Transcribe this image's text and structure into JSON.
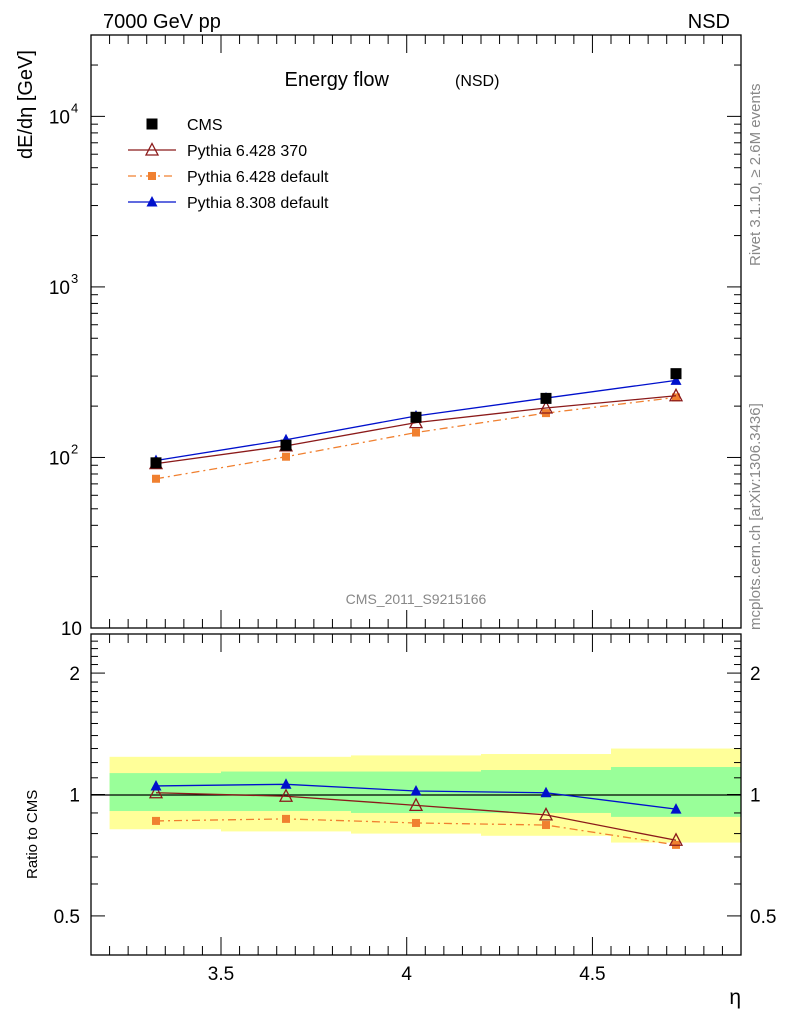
{
  "header": {
    "left": "7000 GeV pp",
    "right": "NSD"
  },
  "side_labels": {
    "rivet": "Rivet 3.1.10, ≥ 2.6M events",
    "mcplots": "mcplots.cern.ch [arXiv:1306.3436]"
  },
  "chart_data": [
    {
      "type": "line",
      "title": "Energy flow",
      "subtitle": "(NSD)",
      "ylabel": "dE/dη [GeV]",
      "yscale": "log",
      "ylim": [
        10,
        30000
      ],
      "xlim": [
        3.15,
        4.9
      ],
      "yticks": [
        {
          "value": 10,
          "label": "10"
        },
        {
          "value": 100,
          "label": "10",
          "exp": "2"
        },
        {
          "value": 1000,
          "label": "10",
          "exp": "3"
        },
        {
          "value": 10000,
          "label": "10",
          "exp": "4"
        }
      ],
      "watermark": "CMS_2011_S9215166",
      "legend_position": "top-left",
      "x": [
        3.325,
        3.675,
        4.025,
        4.375,
        4.725
      ],
      "series": [
        {
          "name": "CMS",
          "values": [
            93,
            118,
            172,
            222,
            310
          ],
          "color": "#000000",
          "marker": "square",
          "line": false
        },
        {
          "name": "Pythia 6.428 370",
          "values": [
            92,
            117,
            160,
            195,
            230
          ],
          "color": "#8b1a1a",
          "marker": "triangle-open",
          "line": "solid"
        },
        {
          "name": "Pythia 6.428 default",
          "values": [
            75,
            101,
            140,
            182,
            225
          ],
          "color": "#f08030",
          "marker": "square-small",
          "line": "dashdot"
        },
        {
          "name": "Pythia 8.308 default",
          "values": [
            96,
            127,
            175,
            223,
            283
          ],
          "color": "#0010cc",
          "marker": "triangle",
          "line": "solid"
        }
      ]
    },
    {
      "type": "line",
      "ylabel": "Ratio to CMS",
      "xlabel": "η",
      "yscale": "log",
      "ylim": [
        0.4,
        2.5
      ],
      "xlim": [
        3.15,
        4.9
      ],
      "xticks": [
        {
          "value": 3.5,
          "label": "3.5"
        },
        {
          "value": 4,
          "label": "4"
        },
        {
          "value": 4.5,
          "label": "4.5"
        }
      ],
      "yticks": [
        {
          "value": 0.5,
          "label": "0.5"
        },
        {
          "value": 1,
          "label": "1"
        },
        {
          "value": 2,
          "label": "2"
        }
      ],
      "bins": [
        {
          "lo": 3.15,
          "hi": 3.5,
          "yellow": [
            0.82,
            1.24
          ],
          "green": [
            0.91,
            1.13
          ]
        },
        {
          "lo": 3.5,
          "hi": 3.85,
          "yellow": [
            0.81,
            1.24
          ],
          "green": [
            0.91,
            1.14
          ]
        },
        {
          "lo": 3.85,
          "hi": 4.2,
          "yellow": [
            0.8,
            1.25
          ],
          "green": [
            0.9,
            1.14
          ]
        },
        {
          "lo": 4.2,
          "hi": 4.55,
          "yellow": [
            0.79,
            1.26
          ],
          "green": [
            0.9,
            1.15
          ]
        },
        {
          "lo": 4.55,
          "hi": 4.9,
          "yellow": [
            0.76,
            1.3
          ],
          "green": [
            0.88,
            1.17
          ]
        }
      ],
      "band_colors": {
        "yellow": "#ffff99",
        "green": "#99ff99"
      },
      "x": [
        3.325,
        3.675,
        4.025,
        4.375,
        4.725
      ],
      "series": [
        {
          "name": "Pythia 6.428 370",
          "values": [
            1.01,
            0.99,
            0.94,
            0.89,
            0.77
          ],
          "color": "#8b1a1a",
          "marker": "triangle-open",
          "line": "solid"
        },
        {
          "name": "Pythia 6.428 default",
          "values": [
            0.86,
            0.87,
            0.85,
            0.84,
            0.75
          ],
          "color": "#f08030",
          "marker": "square-small",
          "line": "dashdot"
        },
        {
          "name": "Pythia 8.308 default",
          "values": [
            1.05,
            1.06,
            1.02,
            1.01,
            0.92
          ],
          "color": "#0010cc",
          "marker": "triangle",
          "line": "solid"
        }
      ]
    }
  ]
}
